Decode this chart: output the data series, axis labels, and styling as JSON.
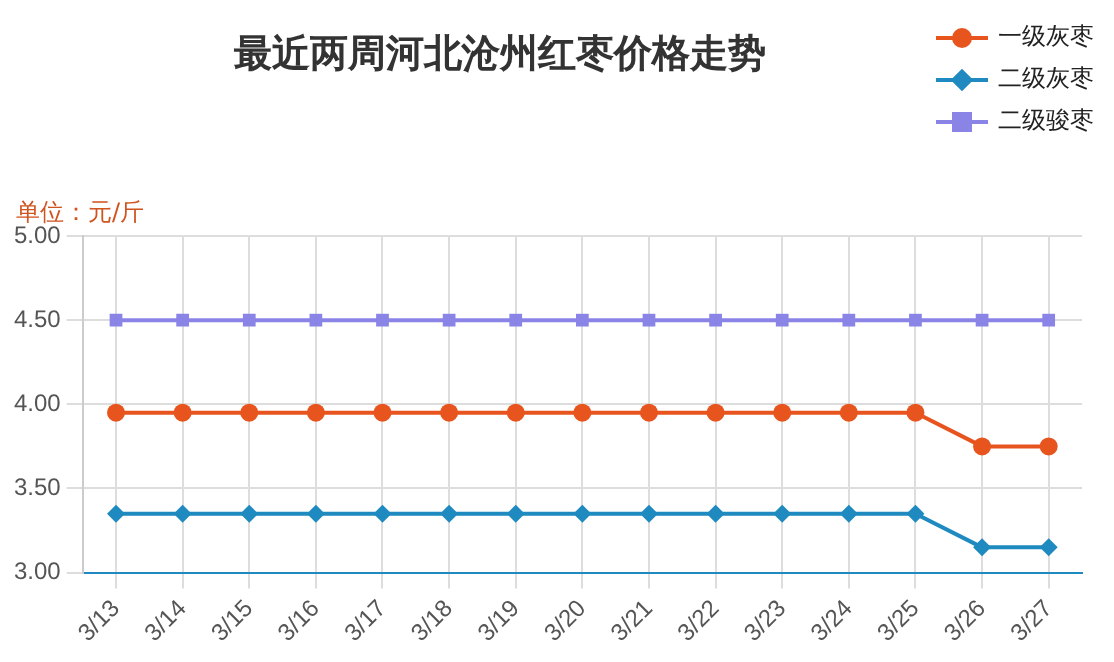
{
  "chart_data": {
    "type": "line",
    "title": "最近两周河北沧州红枣价格走势",
    "ylabel": "单位：元/斤",
    "categories": [
      "3/13",
      "3/14",
      "3/15",
      "3/16",
      "3/17",
      "3/18",
      "3/19",
      "3/20",
      "3/21",
      "3/22",
      "3/23",
      "3/24",
      "3/25",
      "3/26",
      "3/27"
    ],
    "series": [
      {
        "name": "一级灰枣",
        "color": "#e8541e",
        "marker": "circle",
        "values": [
          3.95,
          3.95,
          3.95,
          3.95,
          3.95,
          3.95,
          3.95,
          3.95,
          3.95,
          3.95,
          3.95,
          3.95,
          3.95,
          3.75,
          3.75
        ]
      },
      {
        "name": "二级灰枣",
        "color": "#1f8ac0",
        "marker": "diamond",
        "values": [
          3.35,
          3.35,
          3.35,
          3.35,
          3.35,
          3.35,
          3.35,
          3.35,
          3.35,
          3.35,
          3.35,
          3.35,
          3.35,
          3.15,
          3.15
        ]
      },
      {
        "name": "二级骏枣",
        "color": "#8a84e6",
        "marker": "square",
        "values": [
          4.5,
          4.5,
          4.5,
          4.5,
          4.5,
          4.5,
          4.5,
          4.5,
          4.5,
          4.5,
          4.5,
          4.5,
          4.5,
          4.5,
          4.5
        ]
      }
    ],
    "ylim": [
      3,
      5
    ],
    "yticks": [
      {
        "value": 3,
        "label": "3.00"
      },
      {
        "value": 3.5,
        "label": "3.50"
      },
      {
        "value": 4,
        "label": "4.00"
      },
      {
        "value": 4.5,
        "label": "4.50"
      },
      {
        "value": 5,
        "label": "5.00"
      }
    ],
    "grid": true,
    "legend": "top right"
  }
}
